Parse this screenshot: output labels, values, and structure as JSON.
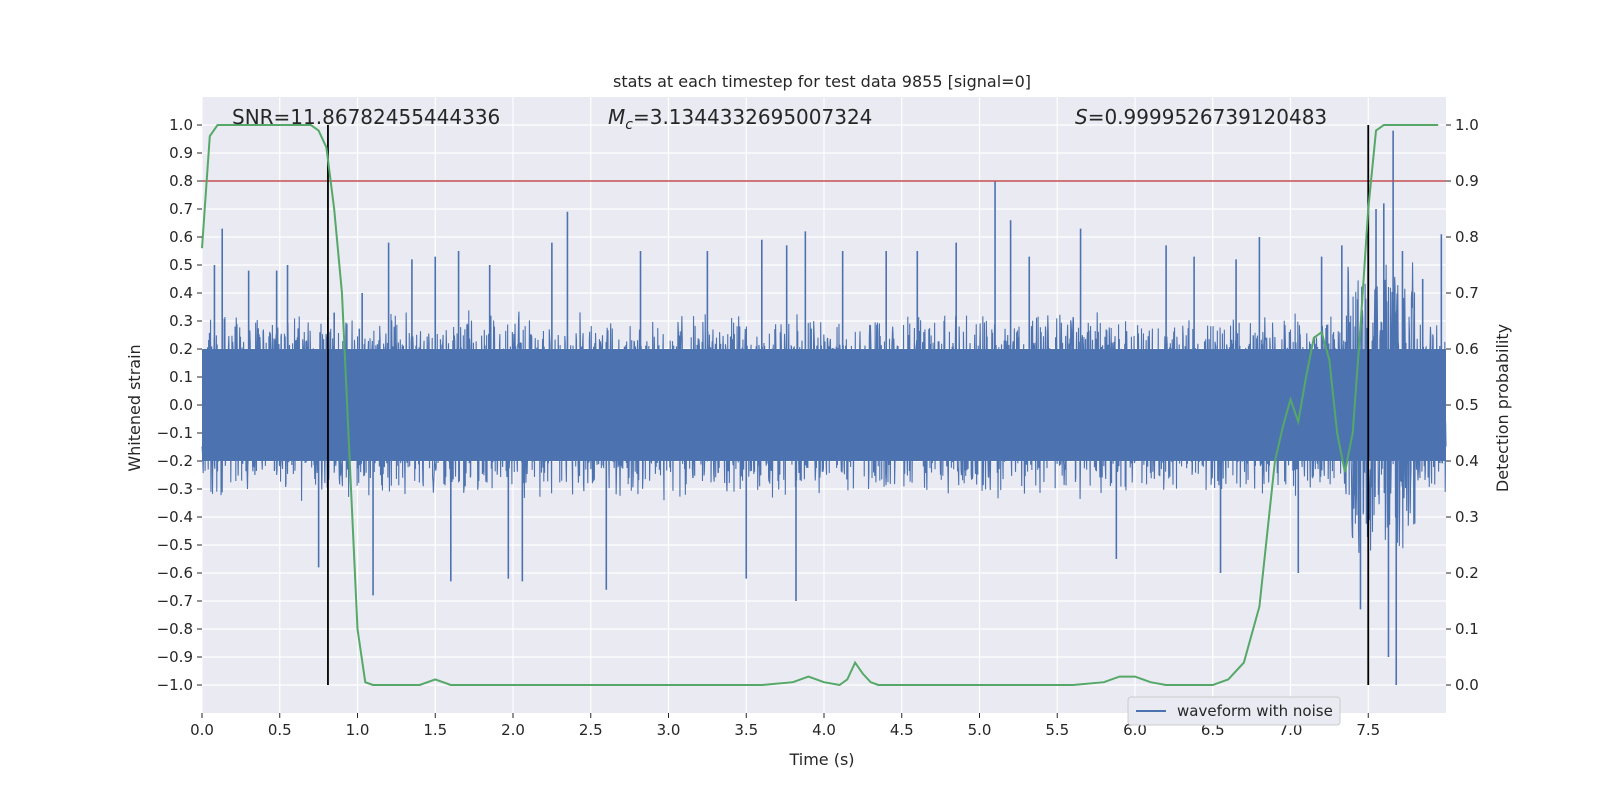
{
  "chart_data": {
    "type": "line",
    "title": "stats at each timestep for test data 9855 [signal=0]",
    "xlabel": "Time (s)",
    "ylabel_left": "Whitened strain",
    "ylabel_right": "Detection probability",
    "xlim": [
      0,
      8
    ],
    "ylim_left": [
      -1.1,
      1.1
    ],
    "ylim_right": [
      -0.05,
      1.05
    ],
    "x_ticks": [
      "0.0",
      "0.5",
      "1.0",
      "1.5",
      "2.0",
      "2.5",
      "3.0",
      "3.5",
      "4.0",
      "4.5",
      "5.0",
      "5.5",
      "6.0",
      "6.5",
      "7.0",
      "7.5"
    ],
    "x_tick_values": [
      0,
      0.5,
      1,
      1.5,
      2,
      2.5,
      3,
      3.5,
      4,
      4.5,
      5,
      5.5,
      6,
      6.5,
      7,
      7.5
    ],
    "y_left_ticks": [
      "1.0",
      "0.9",
      "0.8",
      "0.7",
      "0.6",
      "0.5",
      "0.4",
      "0.3",
      "0.2",
      "0.1",
      "0.0",
      "−0.1",
      "−0.2",
      "−0.3",
      "−0.4",
      "−0.5",
      "−0.6",
      "−0.7",
      "−0.8",
      "−0.9",
      "−1.0"
    ],
    "y_left_tick_values": [
      1.0,
      0.9,
      0.8,
      0.7,
      0.6,
      0.5,
      0.4,
      0.3,
      0.2,
      0.1,
      0.0,
      -0.1,
      -0.2,
      -0.3,
      -0.4,
      -0.5,
      -0.6,
      -0.7,
      -0.8,
      -0.9,
      -1.0
    ],
    "y_right_ticks": [
      "1.0",
      "0.9",
      "0.8",
      "0.7",
      "0.6",
      "0.5",
      "0.4",
      "0.3",
      "0.2",
      "0.1",
      "0.0"
    ],
    "y_right_tick_values": [
      1.0,
      0.9,
      0.8,
      0.7,
      0.6,
      0.5,
      0.4,
      0.3,
      0.2,
      0.1,
      0.0
    ],
    "annotations": {
      "snr": "SNR=11.86782455444336",
      "mc_prefix": "M",
      "mc_sub": "c",
      "mc_value": "=3.1344332695007324",
      "s_prefix": "S",
      "s_value": "=0.9999526739120483"
    },
    "threshold": {
      "value": 0.8,
      "axis": "left",
      "color": "#c44e52"
    },
    "vlines": [
      0.81,
      7.5
    ],
    "grid": true,
    "legend": {
      "placement": "lower-right",
      "entries": [
        "waveform with noise"
      ]
    },
    "series": [
      {
        "name": "waveform with noise",
        "axis": "left",
        "color": "#4c72b0",
        "kind": "noise",
        "envelope": {
          "typical": 0.3,
          "max": 1.0,
          "min": -1.0
        },
        "spikes": [
          [
            0.08,
            0.5
          ],
          [
            0.13,
            0.63
          ],
          [
            0.3,
            0.48
          ],
          [
            0.48,
            0.48
          ],
          [
            0.55,
            0.5
          ],
          [
            0.75,
            -0.58
          ],
          [
            0.85,
            0.33
          ],
          [
            1.03,
            0.4
          ],
          [
            1.1,
            -0.68
          ],
          [
            1.2,
            0.58
          ],
          [
            1.35,
            0.52
          ],
          [
            1.5,
            0.53
          ],
          [
            1.6,
            -0.63
          ],
          [
            1.65,
            0.55
          ],
          [
            1.85,
            0.5
          ],
          [
            1.97,
            -0.62
          ],
          [
            2.06,
            -0.63
          ],
          [
            2.25,
            0.58
          ],
          [
            2.35,
            0.69
          ],
          [
            2.6,
            -0.66
          ],
          [
            2.82,
            0.55
          ],
          [
            3.25,
            0.55
          ],
          [
            3.5,
            -0.62
          ],
          [
            3.6,
            0.59
          ],
          [
            3.76,
            0.57
          ],
          [
            3.82,
            -0.7
          ],
          [
            3.88,
            0.62
          ],
          [
            4.12,
            0.55
          ],
          [
            4.4,
            0.55
          ],
          [
            4.6,
            0.55
          ],
          [
            4.85,
            0.58
          ],
          [
            5.1,
            0.8
          ],
          [
            5.2,
            0.66
          ],
          [
            5.32,
            0.53
          ],
          [
            5.65,
            0.63
          ],
          [
            5.88,
            -0.55
          ],
          [
            6.2,
            0.57
          ],
          [
            6.38,
            0.53
          ],
          [
            6.55,
            -0.6
          ],
          [
            6.65,
            0.52
          ],
          [
            6.8,
            0.6
          ],
          [
            7.05,
            -0.6
          ],
          [
            7.2,
            0.53
          ],
          [
            7.33,
            0.57
          ],
          [
            7.45,
            -0.73
          ],
          [
            7.5,
            0.63
          ],
          [
            7.55,
            0.7
          ],
          [
            7.6,
            0.72
          ],
          [
            7.63,
            -0.9
          ],
          [
            7.66,
            0.98
          ],
          [
            7.68,
            -1.0
          ],
          [
            7.72,
            0.55
          ],
          [
            7.85,
            0.45
          ],
          [
            7.97,
            0.61
          ]
        ]
      },
      {
        "name": "",
        "axis": "right",
        "color": "#55a868",
        "x": [
          0.0,
          0.05,
          0.1,
          0.15,
          0.2,
          0.3,
          0.4,
          0.5,
          0.6,
          0.65,
          0.7,
          0.75,
          0.8,
          0.85,
          0.9,
          0.95,
          1.0,
          1.05,
          1.1,
          1.15,
          1.2,
          1.3,
          1.4,
          1.5,
          1.6,
          1.8,
          2.0,
          2.2,
          2.4,
          2.6,
          2.8,
          3.0,
          3.2,
          3.4,
          3.6,
          3.8,
          3.9,
          4.0,
          4.1,
          4.15,
          4.2,
          4.25,
          4.3,
          4.35,
          4.4,
          4.6,
          4.8,
          5.0,
          5.2,
          5.4,
          5.6,
          5.8,
          5.9,
          6.0,
          6.1,
          6.2,
          6.3,
          6.5,
          6.6,
          6.7,
          6.8,
          6.9,
          6.95,
          7.0,
          7.05,
          7.1,
          7.15,
          7.2,
          7.25,
          7.3,
          7.35,
          7.4,
          7.45,
          7.5,
          7.55,
          7.6,
          7.7,
          7.8,
          7.9,
          7.95
        ],
        "values": [
          0.78,
          0.98,
          1.0,
          1.0,
          1.0,
          1.0,
          1.0,
          1.0,
          1.0,
          1.0,
          1.0,
          0.99,
          0.96,
          0.85,
          0.7,
          0.4,
          0.1,
          0.005,
          0.0,
          0.0,
          0.0,
          0.0,
          0.0,
          0.01,
          0.0,
          0.0,
          0.0,
          0.0,
          0.0,
          0.0,
          0.0,
          0.0,
          0.0,
          0.0,
          0.0,
          0.005,
          0.015,
          0.005,
          0.0,
          0.01,
          0.04,
          0.02,
          0.005,
          0.0,
          0.0,
          0.0,
          0.0,
          0.0,
          0.0,
          0.0,
          0.0,
          0.005,
          0.015,
          0.015,
          0.005,
          0.0,
          0.0,
          0.0,
          0.01,
          0.04,
          0.14,
          0.4,
          0.46,
          0.51,
          0.47,
          0.55,
          0.62,
          0.63,
          0.58,
          0.45,
          0.38,
          0.45,
          0.64,
          0.85,
          0.99,
          1.0,
          1.0,
          1.0,
          1.0,
          1.0
        ]
      }
    ]
  }
}
